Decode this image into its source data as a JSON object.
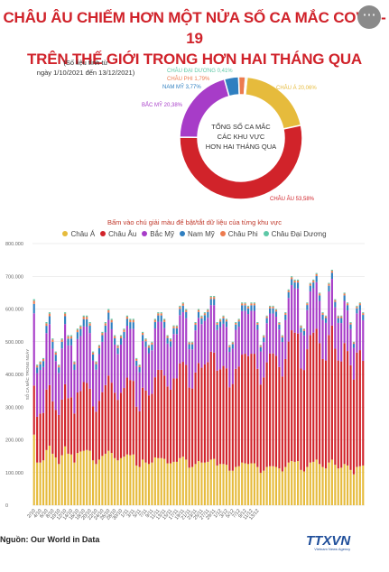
{
  "title_line1": "CHÂU ÂU CHIẾM HƠN MỘT NỬA SỐ CA MẮC COVID-19",
  "title_line2": "TRÊN THẾ GIỚI TRONG HƠN HAI THÁNG QUA",
  "more_button": "⋯",
  "note_line1": "(Số liệu tính từ",
  "note_line2": "ngày 1/10/2021 đến 13/12/2021)",
  "hint": "Bấm vào chú giải màu để bật/tắt dữ liệu của từng khu vực",
  "source": "Nguồn: Our World in Data",
  "logo": "TTXVN",
  "logo_sub": "Vietnam News Agency",
  "colors": {
    "asia": "#e6bb3c",
    "europe": "#d1232a",
    "north_america": "#a73cc8",
    "south_america": "#2f7fc0",
    "africa": "#ec7b4f",
    "oceania": "#5ec8a7",
    "title": "#d0222a"
  },
  "chart_data": [
    {
      "type": "pie",
      "center_label": [
        "TỔNG SỐ CA MẮC",
        "CÁC KHU VỰC",
        "HƠN HAI THÁNG QUA"
      ],
      "slices": [
        {
          "name": "CHÂU Á",
          "value": 20.06,
          "label": "CHÂU Á 20,06%",
          "color": "#e6bb3c"
        },
        {
          "name": "CHÂU ÂU",
          "value": 53.58,
          "label": "CHÂU ÂU 53,58%",
          "color": "#d1232a"
        },
        {
          "name": "BẮC MỸ",
          "value": 20.38,
          "label": "BẮC MỸ 20,38%",
          "color": "#a73cc8"
        },
        {
          "name": "NAM MỸ",
          "value": 3.77,
          "label": "NAM MỸ 3,77%",
          "color": "#2f7fc0"
        },
        {
          "name": "CHÂU PHI",
          "value": 1.79,
          "label": "CHÂU PHI 1,79%",
          "color": "#ec7b4f"
        },
        {
          "name": "CHÂU ĐẠI DƯƠNG",
          "value": 0.41,
          "label": "CHÂU ĐẠI DƯƠNG 0,41%",
          "color": "#5ec8a7"
        }
      ]
    },
    {
      "type": "bar",
      "stacked": true,
      "ylabel": "SỐ CA MẮC TRONG NGÀY",
      "ylim": [
        0,
        800000
      ],
      "yticks": [
        "0",
        "100.000",
        "200.000",
        "300.000",
        "400.000",
        "500.000",
        "600.000",
        "700.000",
        "800.000"
      ],
      "legend_position": "top",
      "xtick_labels": [
        "2/10",
        "4/10",
        "6/10",
        "8/10",
        "10/10",
        "12/10",
        "14/10",
        "16/10",
        "18/10",
        "20/10",
        "22/10",
        "24/10",
        "26/10",
        "28/10",
        "30/10",
        "1/11",
        "3/11",
        "5/11",
        "7/11",
        "9/11",
        "11/11",
        "13/11",
        "15/11",
        "17/11",
        "19/11",
        "21/11",
        "23/11",
        "25/11",
        "27/11",
        "29/11",
        "1/12",
        "3/12",
        "5/12",
        "7/12",
        "9/12",
        "11/12",
        "13/12"
      ],
      "series_order": [
        "asia",
        "europe",
        "north_america",
        "south_america",
        "africa",
        "oceania"
      ],
      "series_names": {
        "asia": "Châu Á",
        "europe": "Châu Âu",
        "north_america": "Bắc Mỹ",
        "south_america": "Nam Mỹ",
        "africa": "Châu Phi",
        "oceania": "Châu Đại Dương"
      },
      "totals": [
        630000,
        430000,
        440000,
        450000,
        560000,
        590000,
        510000,
        470000,
        430000,
        510000,
        590000,
        520000,
        520000,
        440000,
        540000,
        550000,
        580000,
        580000,
        560000,
        470000,
        440000,
        490000,
        530000,
        560000,
        600000,
        570000,
        520000,
        490000,
        520000,
        540000,
        580000,
        570000,
        570000,
        450000,
        430000,
        530000,
        510000,
        490000,
        500000,
        570000,
        590000,
        590000,
        570000,
        520000,
        510000,
        550000,
        550000,
        610000,
        620000,
        600000,
        500000,
        500000,
        560000,
        600000,
        580000,
        590000,
        600000,
        640000,
        640000,
        560000,
        570000,
        580000,
        570000,
        490000,
        500000,
        560000,
        570000,
        620000,
        620000,
        610000,
        620000,
        620000,
        560000,
        490000,
        520000,
        580000,
        610000,
        610000,
        600000,
        560000,
        520000,
        590000,
        660000,
        700000,
        690000,
        690000,
        550000,
        540000,
        620000,
        680000,
        690000,
        710000,
        650000,
        590000,
        580000,
        680000,
        720000,
        630000,
        580000,
        580000,
        650000,
        620000,
        560000,
        500000,
        610000,
        620000,
        590000
      ],
      "europe_values": [
        150000,
        140000,
        150000,
        145000,
        185000,
        185000,
        160000,
        145000,
        150000,
        170000,
        190000,
        170000,
        175000,
        150000,
        185000,
        185000,
        210000,
        205000,
        190000,
        165000,
        160000,
        180000,
        195000,
        210000,
        230000,
        215000,
        200000,
        185000,
        200000,
        210000,
        235000,
        230000,
        225000,
        180000,
        170000,
        220000,
        220000,
        210000,
        210000,
        245000,
        270000,
        270000,
        255000,
        235000,
        225000,
        255000,
        255000,
        290000,
        290000,
        290000,
        245000,
        240000,
        280000,
        300000,
        290000,
        300000,
        305000,
        330000,
        325000,
        290000,
        290000,
        300000,
        295000,
        255000,
        265000,
        300000,
        305000,
        330000,
        335000,
        330000,
        335000,
        335000,
        300000,
        270000,
        285000,
        320000,
        345000,
        345000,
        340000,
        310000,
        290000,
        330000,
        370000,
        400000,
        395000,
        390000,
        310000,
        310000,
        360000,
        390000,
        395000,
        400000,
        370000,
        330000,
        330000,
        390000,
        410000,
        355000,
        330000,
        325000,
        370000,
        350000,
        320000,
        290000,
        350000,
        355000,
        320000
      ]
    }
  ]
}
